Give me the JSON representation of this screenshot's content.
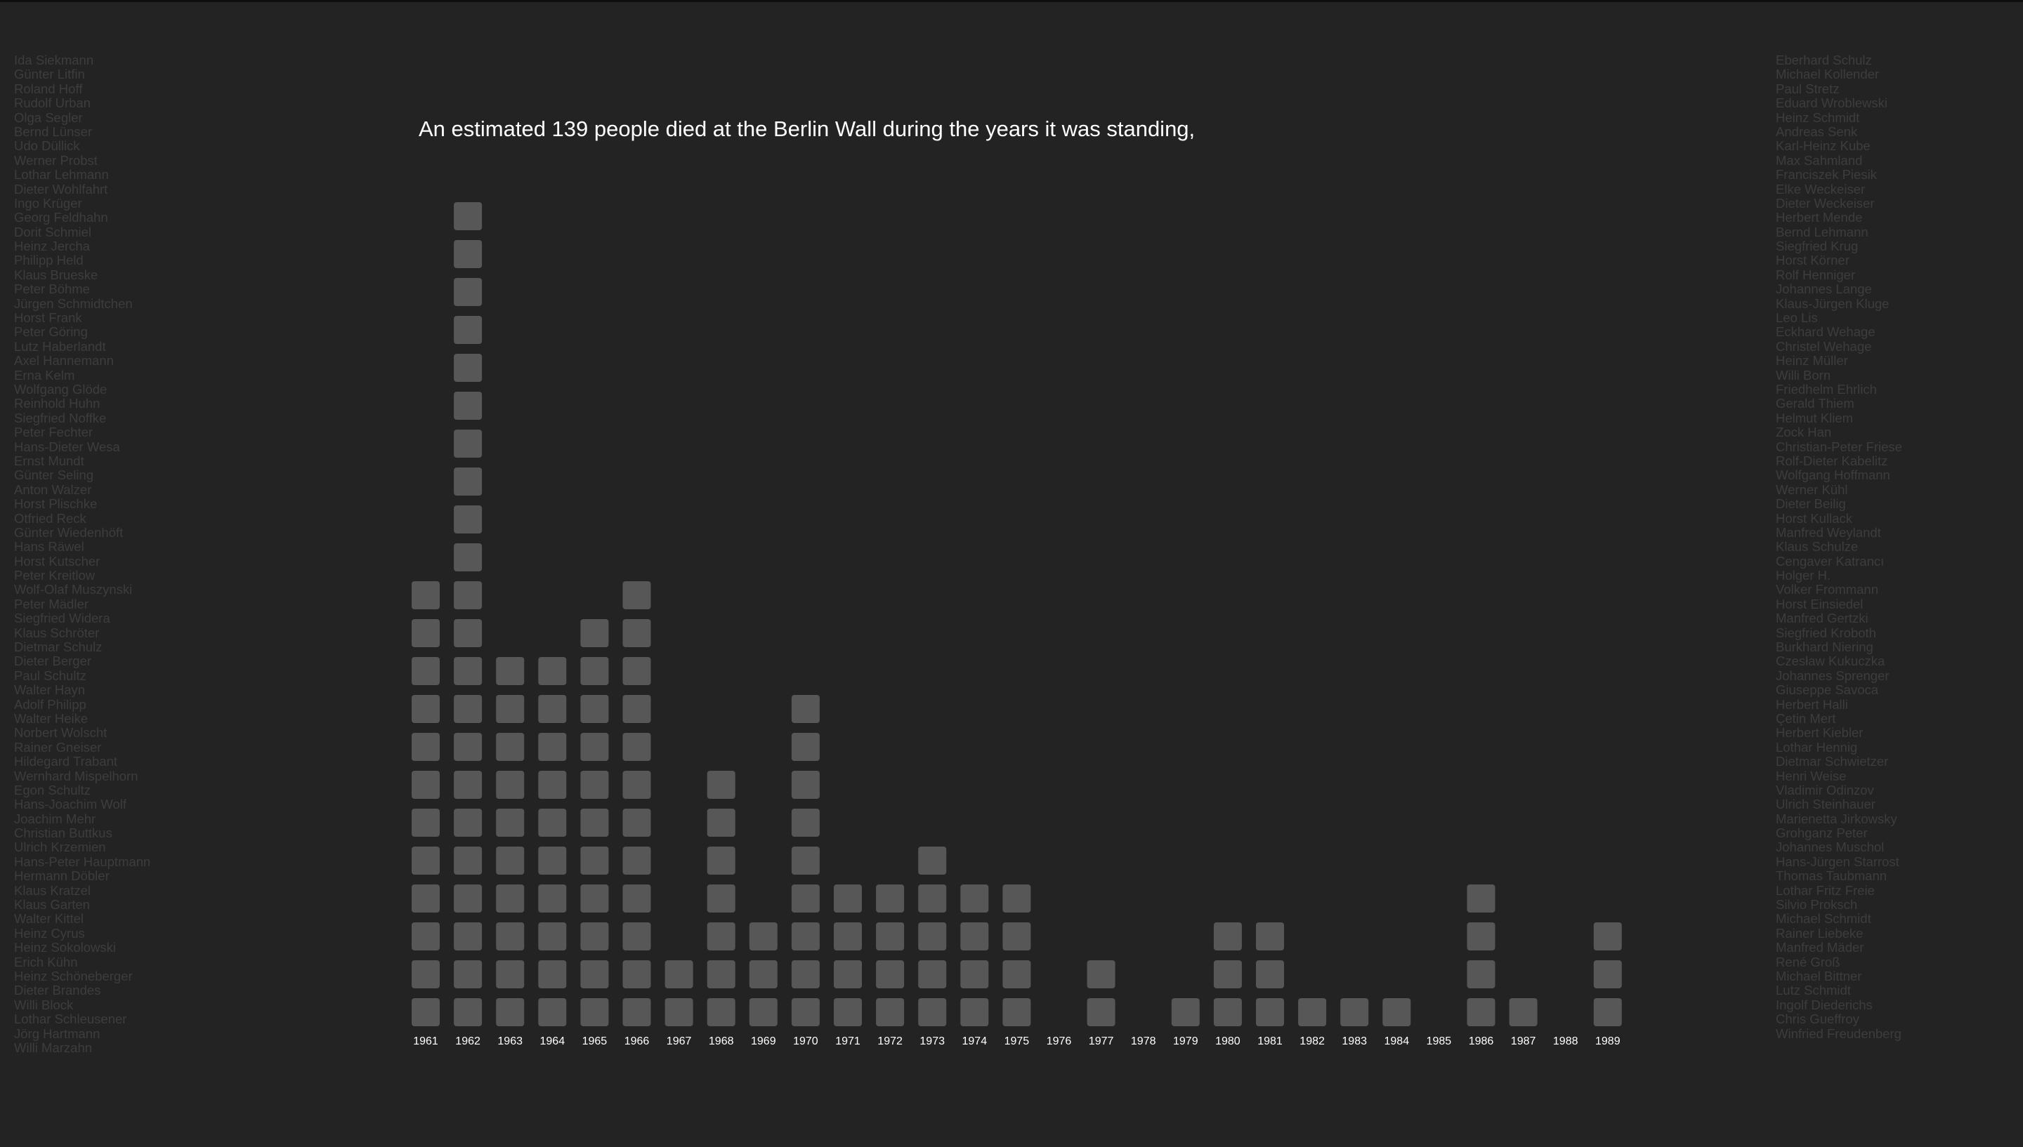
{
  "headline": "An estimated 139 people died at the Berlin Wall during the years it was standing,",
  "names_left": [
    "Ida Siekmann",
    "Günter Litfin",
    "Roland Hoff",
    "Rudolf Urban",
    "Olga Segler",
    "Bernd Lünser",
    "Udo Düllick",
    "Werner Probst",
    "Lothar Lehmann",
    "Dieter Wohlfahrt",
    "Ingo Krüger",
    "Georg Feldhahn",
    "Dorit Schmiel",
    "Heinz Jercha",
    "Philipp Held",
    "Klaus Brueske",
    "Peter Böhme",
    "Jürgen Schmidtchen",
    "Horst Frank",
    "Peter Göring",
    "Lutz Haberlandt",
    "Axel Hannemann",
    "Erna Kelm",
    "Wolfgang Glöde",
    "Reinhold Huhn",
    "Siegfried Noffke",
    "Peter Fechter",
    "Hans-Dieter Wesa",
    "Ernst Mundt",
    "Günter Seling",
    "Anton Walzer",
    "Horst Plischke",
    "Otfried Reck",
    "Günter Wiedenhöft",
    "Hans Räwel",
    "Horst Kutscher",
    "Peter Kreitlow",
    "Wolf-Olaf Muszynski",
    "Peter Mädler",
    "Siegfried Widera",
    "Klaus Schröter",
    "Dietmar Schulz",
    "Dieter Berger",
    "Paul Schultz",
    "Walter Hayn",
    "Adolf Philipp",
    "Walter Heike",
    "Norbert Wolscht",
    "Rainer Gneiser",
    "Hildegard Trabant",
    "Wernhard Mispelhorn",
    "Egon Schultz",
    "Hans-Joachim Wolf",
    "Joachim Mehr",
    "Christian Buttkus",
    "Ulrich Krzemien",
    "Hans-Peter Hauptmann",
    "Hermann Döbler",
    "Klaus Kratzel",
    "Klaus Garten",
    "Walter Kittel",
    "Heinz Cyrus",
    "Heinz Sokolowski",
    "Erich Kühn",
    "Heinz Schöneberger",
    "Dieter Brandes",
    "Willi Block",
    "Lothar Schleusener",
    "Jörg Hartmann",
    "Willi Marzahn"
  ],
  "names_right": [
    "Eberhard Schulz",
    "Michael Kollender",
    "Paul Stretz",
    "Eduard Wroblewski",
    "Heinz Schmidt",
    "Andreas Senk",
    "Karl-Heinz Kube",
    "Max Sahmland",
    "Franciszek Piesik",
    "Elke Weckeiser",
    "Dieter Weckeiser",
    "Herbert Mende",
    "Bernd Lehmann",
    "Siegfried Krug",
    "Horst Körner",
    "Rolf Henniger",
    "Johannes Lange",
    "Klaus-Jürgen Kluge",
    "Leo Lis",
    "Eckhard Wehage",
    "Christel Wehage",
    "Heinz Müller",
    "Willi Born",
    "Friedhelm Ehrlich",
    "Gerald Thiem",
    "Helmut Kliem",
    "Zock Han",
    "Christian-Peter Friese",
    "Rolf-Dieter Kabelitz",
    "Wolfgang Hoffmann",
    "Werner Kühl",
    "Dieter Beilig",
    "Horst Kullack",
    "Manfred Weylandt",
    "Klaus Schulze",
    "Cengaver Katrancı",
    "Holger H.",
    "Volker Frommann",
    "Horst Einsiedel",
    "Manfred Gertzki",
    "Siegfried Kroboth",
    "Burkhard Niering",
    "Czesław Kukuczka",
    "Johannes Sprenger",
    "Giuseppe Savoca",
    "Herbert Halli",
    "Çetin Mert",
    "Herbert Kiebler",
    "Lothar Hennig",
    "Dietmar Schwietzer",
    "Henri Weise",
    "Vladimir Odinzov",
    "Ulrich Steinhauer",
    "Marienetta Jirkowsky",
    "Grohganz Peter",
    "Johannes Muschol",
    "Hans-Jürgen Starrost",
    "Thomas Taubmann",
    "Lothar Fritz Freie",
    "Silvio Proksch",
    "Michael Schmidt",
    "Rainer Liebeke",
    "Manfred Mäder",
    "René Groß",
    "Michael Bittner",
    "Lutz Schmidt",
    "Ingolf Diederichs",
    "Chris Gueffroy",
    "Winfried Freudenberg"
  ],
  "chart_data": {
    "type": "bar",
    "categories": [
      "1961",
      "1962",
      "1963",
      "1964",
      "1965",
      "1966",
      "1967",
      "1968",
      "1969",
      "1970",
      "1971",
      "1972",
      "1973",
      "1974",
      "1975",
      "1976",
      "1977",
      "1978",
      "1979",
      "1980",
      "1981",
      "1982",
      "1983",
      "1984",
      "1985",
      "1986",
      "1987",
      "1988",
      "1989"
    ],
    "values": [
      12,
      22,
      10,
      10,
      11,
      12,
      2,
      7,
      3,
      9,
      4,
      4,
      5,
      4,
      4,
      0,
      2,
      0,
      1,
      3,
      3,
      1,
      1,
      1,
      0,
      4,
      1,
      0,
      3
    ],
    "ylim": [
      0,
      22
    ],
    "grid": false,
    "colors": {
      "block": "#575757",
      "label": "#ffffff"
    }
  }
}
